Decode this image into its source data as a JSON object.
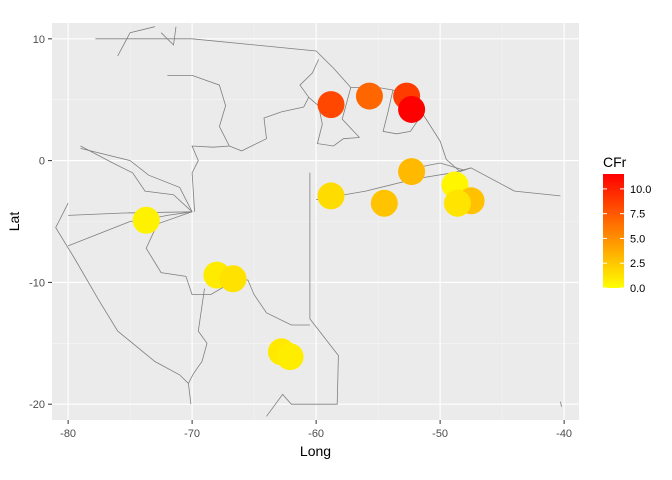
{
  "chart_data": {
    "type": "scatter",
    "title": "",
    "xlabel": "Long",
    "ylabel": "Lat",
    "xlim": [
      -81.3,
      -38.8
    ],
    "ylim": [
      -21.3,
      11.3
    ],
    "x_ticks": [
      -80,
      -70,
      -60,
      -50,
      -40
    ],
    "y_ticks": [
      10,
      0,
      -10,
      -20
    ],
    "x_tick_labels": [
      "-80",
      "-70",
      "-60",
      "-50",
      "-40"
    ],
    "y_tick_labels": [
      "10",
      "0",
      "-10",
      "-20"
    ],
    "grid": true,
    "background": "#EBEBEB",
    "basemap": "country boundary lines (grey)",
    "color_scale": {
      "name": "CFr",
      "min": 0,
      "max": 11.5,
      "low_color": "#FFFF00",
      "high_color": "#FF0000",
      "breaks": [
        0,
        2.5,
        5,
        7.5,
        10
      ],
      "break_labels": [
        "0.0",
        "2.5",
        "5.0",
        "7.5",
        "10.0"
      ],
      "legend_placement": "right"
    },
    "points": [
      {
        "x": -73.7,
        "y": -4.9,
        "CFr": 0.6
      },
      {
        "x": -68.0,
        "y": -9.4,
        "CFr": 0.9
      },
      {
        "x": -66.7,
        "y": -9.7,
        "CFr": 1.3
      },
      {
        "x": -62.8,
        "y": -15.7,
        "CFr": 1.0
      },
      {
        "x": -62.1,
        "y": -16.1,
        "CFr": 0.8
      },
      {
        "x": -58.8,
        "y": -2.9,
        "CFr": 1.6
      },
      {
        "x": -58.8,
        "y": 4.6,
        "CFr": 8.3
      },
      {
        "x": -55.7,
        "y": 5.3,
        "CFr": 6.9
      },
      {
        "x": -54.5,
        "y": -3.5,
        "CFr": 2.7
      },
      {
        "x": -52.7,
        "y": 5.3,
        "CFr": 8.8
      },
      {
        "x": -52.3,
        "y": 4.2,
        "CFr": 11.5
      },
      {
        "x": -52.3,
        "y": -0.9,
        "CFr": 3.1
      },
      {
        "x": -48.8,
        "y": -2.0,
        "CFr": 0.4
      },
      {
        "x": -47.5,
        "y": -3.3,
        "CFr": 2.8
      },
      {
        "x": -48.6,
        "y": -3.5,
        "CFr": 1.2
      }
    ]
  }
}
